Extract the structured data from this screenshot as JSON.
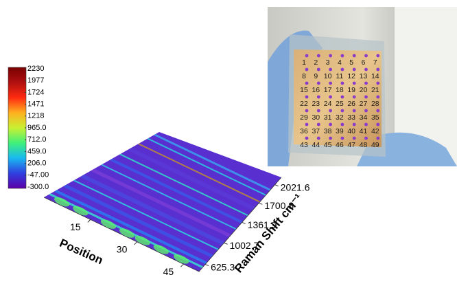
{
  "chart_data": {
    "type": "heatmap3d",
    "x_label": "Position",
    "y_label": "Raman Shift  cm⁻¹",
    "xlim": [
      0,
      50
    ],
    "xticks": [
      15,
      30,
      45
    ],
    "ylim": [
      500,
      2150
    ],
    "yticks": [
      625.3,
      1002.7,
      1361.9,
      1700.8,
      2021.6
    ],
    "zlim": [
      -300,
      2230
    ],
    "zticks": [
      2230,
      1977,
      1724,
      1471,
      1218,
      {
        "value": 965,
        "label": "965.0"
      },
      {
        "value": 712,
        "label": "712.0"
      },
      {
        "value": 459,
        "label": "459.0"
      },
      {
        "value": 206,
        "label": "206.0"
      },
      {
        "value": -47,
        "label": "-47.00"
      },
      {
        "value": -300,
        "label": "-300.0"
      }
    ],
    "colormap": [
      "#5b00a8",
      "#2f3fe0",
      "#19b8f0",
      "#3ff07a",
      "#c8f032",
      "#ffb020",
      "#ff2a10",
      "#b01010",
      "#7a0000"
    ]
  },
  "photo": {
    "labels": [
      1,
      2,
      3,
      4,
      5,
      6,
      7,
      8,
      9,
      10,
      11,
      12,
      13,
      14,
      15,
      16,
      17,
      18,
      19,
      20,
      21,
      22,
      23,
      24,
      25,
      26,
      27,
      28,
      29,
      30,
      31,
      32,
      33,
      34,
      35,
      36,
      37,
      38,
      39,
      40,
      41,
      42,
      43,
      44,
      45,
      46,
      47,
      48,
      49
    ]
  }
}
